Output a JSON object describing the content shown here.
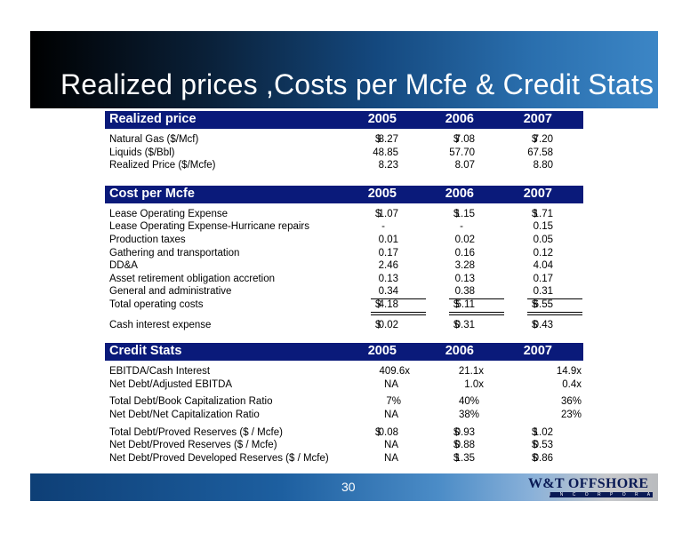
{
  "title": "Realized prices ,Costs per Mcfe & Credit Stats",
  "page_number": "30",
  "logo": {
    "name": "W&T OFFSHORE",
    "sub": "I N C O R P O R A T E D"
  },
  "currency": "$",
  "realized": {
    "header": "Realized price",
    "years": [
      "2005",
      "2006",
      "2007"
    ],
    "rows": [
      {
        "label": "Natural Gas ($/Mcf)",
        "values": [
          "8.27",
          "7.08",
          "7.20"
        ]
      },
      {
        "label": "Liquids ($/Bbl)",
        "values": [
          "48.85",
          "57.70",
          "67.58"
        ]
      },
      {
        "label": "Realized Price ($/Mcfe)",
        "values": [
          "8.23",
          "8.07",
          "8.80"
        ]
      }
    ]
  },
  "cost": {
    "header": "Cost per Mcfe",
    "years": [
      "2005",
      "2006",
      "2007"
    ],
    "rows": [
      {
        "label": "Lease Operating Expense",
        "values": [
          "1.07",
          "1.15",
          "1.71"
        ]
      },
      {
        "label": "Lease Operating Expense-Hurricane repairs",
        "values": [
          "-",
          "-",
          "0.15"
        ]
      },
      {
        "label": "Production taxes",
        "values": [
          "0.01",
          "0.02",
          "0.05"
        ]
      },
      {
        "label": "Gathering and transportation",
        "values": [
          "0.17",
          "0.16",
          "0.12"
        ]
      },
      {
        "label": "DD&A",
        "values": [
          "2.46",
          "3.28",
          "4.04"
        ]
      },
      {
        "label": "Asset retirement obligation accretion",
        "values": [
          "0.13",
          "0.13",
          "0.17"
        ]
      },
      {
        "label": "General and administrative",
        "values": [
          "0.34",
          "0.38",
          "0.31"
        ]
      }
    ],
    "total": {
      "label": "Total operating costs",
      "values": [
        "4.18",
        "5.11",
        "6.55"
      ]
    },
    "interest": {
      "label": "Cash interest expense",
      "values": [
        "0.02",
        "0.31",
        "0.43"
      ]
    }
  },
  "credit": {
    "header": "Credit Stats",
    "years": [
      "2005",
      "2006",
      "2007"
    ],
    "groups": [
      [
        {
          "label": "EBITDA/Cash Interest",
          "values": [
            "409.6x",
            "21.1x",
            "14.9x"
          ]
        },
        {
          "label": "Net Debt/Adjusted EBITDA",
          "values": [
            "NA",
            "1.0x",
            "0.4x"
          ]
        }
      ],
      [
        {
          "label": "Total Debt/Book Capitalization Ratio",
          "values": [
            "7%",
            "40%",
            "36%"
          ]
        },
        {
          "label": "Net Debt/Net Capitalization Ratio",
          "values": [
            "NA",
            "38%",
            "23%"
          ]
        }
      ],
      [
        {
          "label": "Total Debt/Proved Reserves ($ / Mcfe)",
          "values": [
            "0.08",
            "0.93",
            "1.02"
          ]
        },
        {
          "label": "Net Debt/Proved Reserves ($ / Mcfe)",
          "values": [
            "NA",
            "0.88",
            "0.53"
          ]
        },
        {
          "label": "Net Debt/Proved Developed Reserves ($ / Mcfe)",
          "values": [
            "NA",
            "1.35",
            "0.86"
          ]
        }
      ]
    ]
  }
}
